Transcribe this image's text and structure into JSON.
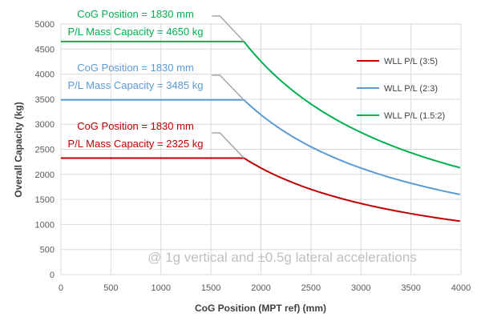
{
  "chart_data": {
    "type": "line",
    "xlabel": "CoG Position (MPT ref) (mm)",
    "ylabel": "Overall Capacity (kg)",
    "xlim": [
      0,
      4000
    ],
    "ylim": [
      0,
      5000
    ],
    "x_ticks": [
      0,
      500,
      1000,
      1500,
      2000,
      2500,
      3000,
      3500,
      4000
    ],
    "y_ticks": [
      0,
      500,
      1000,
      1500,
      2000,
      2500,
      3000,
      3500,
      4000,
      4500,
      5000
    ],
    "grid": true,
    "legend_position": "right",
    "series": [
      {
        "name": "WLL P/L (3:5)",
        "color": "#c00000",
        "x": [
          0,
          1830,
          2000,
          2250,
          2500,
          2750,
          3000,
          3250,
          3500,
          3750,
          4000
        ],
        "y": [
          2325,
          2325,
          2128,
          1891,
          1702,
          1547,
          1418,
          1309,
          1216,
          1135,
          1064
        ]
      },
      {
        "name": "WLL P/L (2:3)",
        "color": "#5b9bd5",
        "x": [
          0,
          1830,
          2000,
          2250,
          2500,
          2750,
          3000,
          3250,
          3500,
          3750,
          4000
        ],
        "y": [
          3485,
          3485,
          3189,
          2835,
          2551,
          2319,
          2126,
          1962,
          1822,
          1701,
          1595
        ]
      },
      {
        "name": "WLL P/L (1.5:2)",
        "color": "#00b050",
        "x": [
          0,
          1830,
          2000,
          2250,
          2500,
          2750,
          3000,
          3250,
          3500,
          3750,
          4000
        ],
        "y": [
          4650,
          4650,
          4255,
          3782,
          3404,
          3094,
          2837,
          2618,
          2431,
          2269,
          2127
        ]
      }
    ],
    "annotations": [
      {
        "lines": [
          "CoG Position = 1830 mm",
          "P/L Mass Capacity = 4650 kg"
        ],
        "color": "#00b050"
      },
      {
        "lines": [
          "CoG Position = 1830 mm",
          "P/L Mass Capacity = 3485 kg"
        ],
        "color": "#5b9bd5"
      },
      {
        "lines": [
          "CoG Position = 1830 mm",
          "P/L Mass Capacity = 2325 kg"
        ],
        "color": "#c00000"
      }
    ],
    "note": "@ 1g vertical and ±0.5g lateral accelerations"
  }
}
